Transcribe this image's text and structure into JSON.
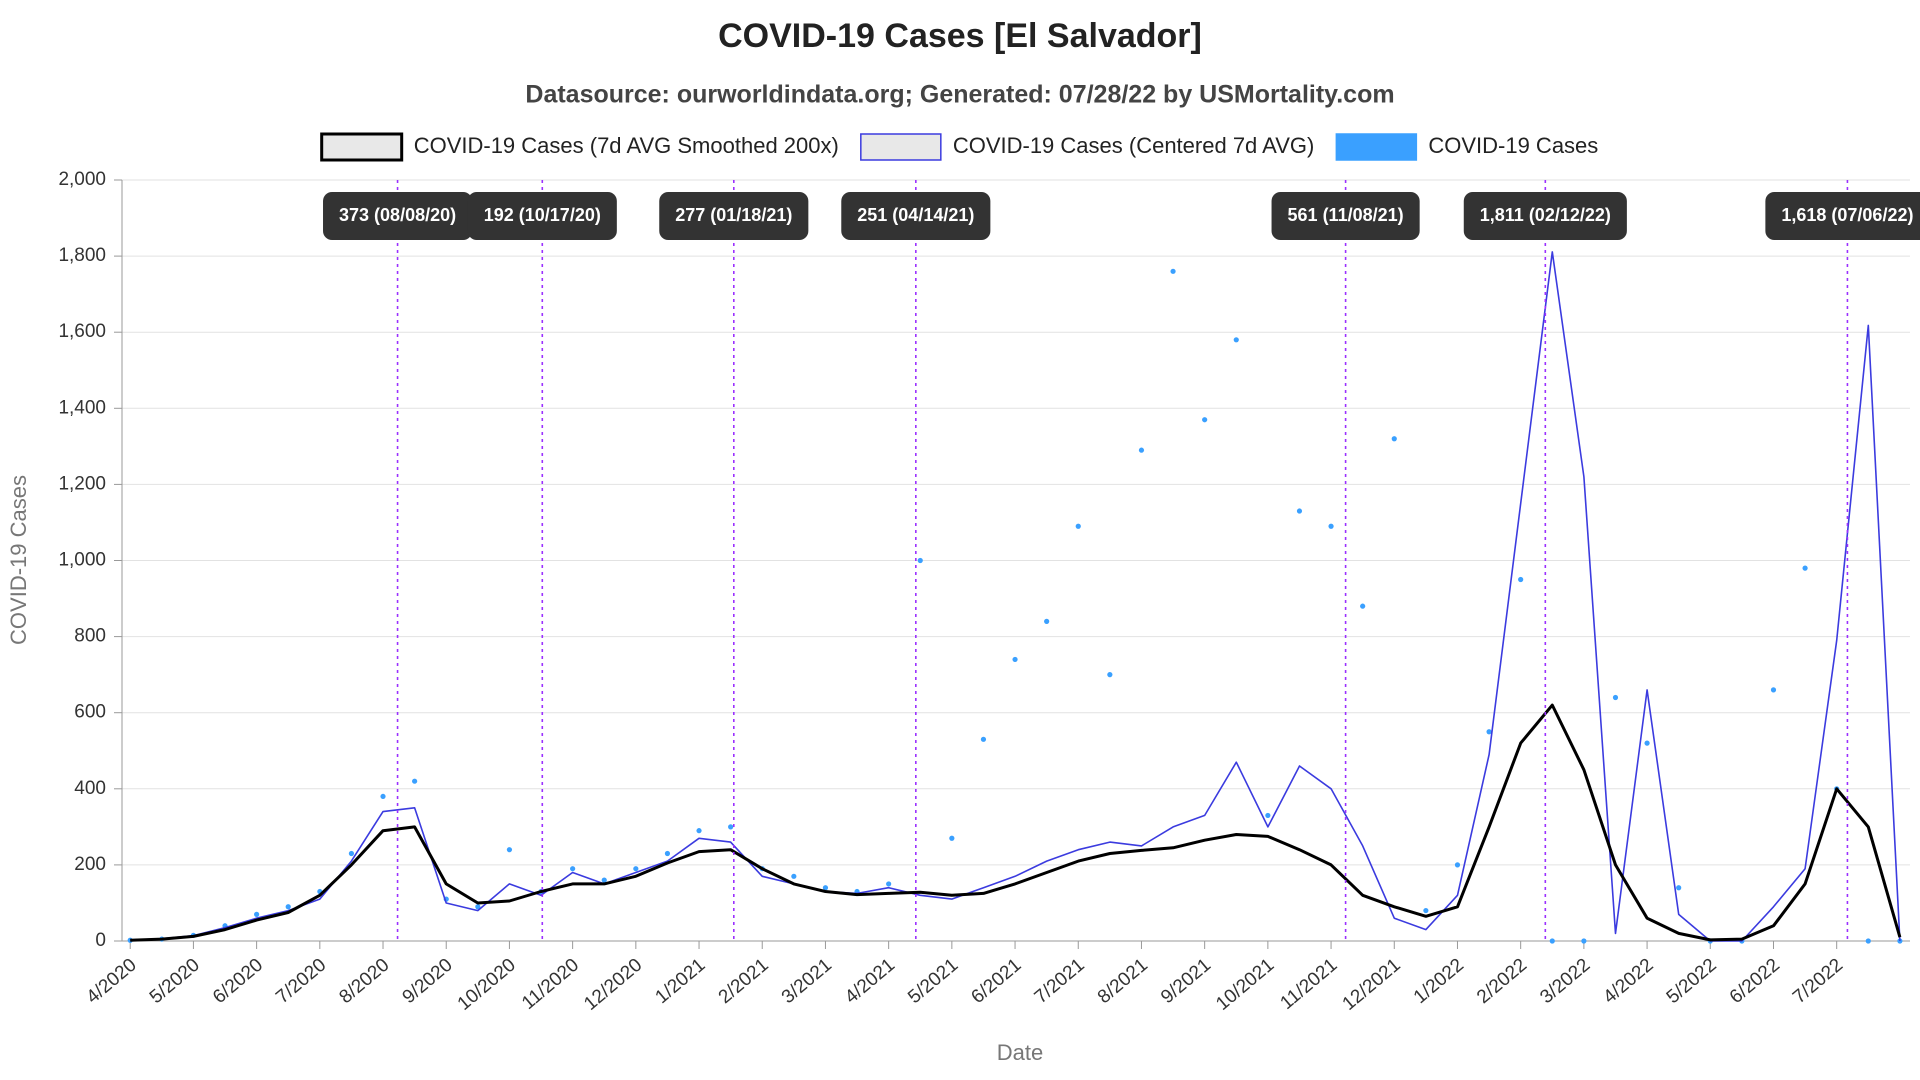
{
  "chart_data": {
    "type": "line",
    "title": "COVID-19 Cases [El Salvador]",
    "subtitle": "Datasource: ourworldindata.org; Generated: 07/28/22 by USMortality.com",
    "x_label": "Date",
    "y_label": "COVID-19 Cases",
    "xlim": [
      -0.13,
      28.16
    ],
    "xticks": [
      {
        "value": 0,
        "label": "4/2020"
      },
      {
        "value": 1,
        "label": "5/2020"
      },
      {
        "value": 2,
        "label": "6/2020"
      },
      {
        "value": 3,
        "label": "7/2020"
      },
      {
        "value": 4,
        "label": "8/2020"
      },
      {
        "value": 5,
        "label": "9/2020"
      },
      {
        "value": 6,
        "label": "10/2020"
      },
      {
        "value": 7,
        "label": "11/2020"
      },
      {
        "value": 8,
        "label": "12/2020"
      },
      {
        "value": 9,
        "label": "1/2021"
      },
      {
        "value": 10,
        "label": "2/2021"
      },
      {
        "value": 11,
        "label": "3/2021"
      },
      {
        "value": 12,
        "label": "4/2021"
      },
      {
        "value": 13,
        "label": "5/2021"
      },
      {
        "value": 14,
        "label": "6/2021"
      },
      {
        "value": 15,
        "label": "7/2021"
      },
      {
        "value": 16,
        "label": "8/2021"
      },
      {
        "value": 17,
        "label": "9/2021"
      },
      {
        "value": 18,
        "label": "10/2021"
      },
      {
        "value": 19,
        "label": "11/2021"
      },
      {
        "value": 20,
        "label": "12/2021"
      },
      {
        "value": 21,
        "label": "1/2022"
      },
      {
        "value": 22,
        "label": "2/2022"
      },
      {
        "value": 23,
        "label": "3/2022"
      },
      {
        "value": 24,
        "label": "4/2022"
      },
      {
        "value": 25,
        "label": "5/2022"
      },
      {
        "value": 26,
        "label": "6/2022"
      },
      {
        "value": 27,
        "label": "7/2022"
      }
    ],
    "ylim": [
      0,
      2000
    ],
    "yticks": [
      0,
      200,
      400,
      600,
      800,
      {
        "value": 1000,
        "label": "1,000"
      },
      {
        "value": 1200,
        "label": "1,200"
      },
      {
        "value": 1400,
        "label": "1,400"
      },
      {
        "value": 1600,
        "label": "1,600"
      },
      {
        "value": 1800,
        "label": "1,800"
      },
      {
        "value": 2000,
        "label": "2,000"
      }
    ],
    "grid": true,
    "x": [
      0,
      0.5,
      1,
      1.5,
      2,
      2.5,
      3,
      3.5,
      4,
      4.5,
      5,
      5.5,
      6,
      6.5,
      7,
      7.5,
      8,
      8.5,
      9,
      9.5,
      10,
      10.5,
      11,
      11.5,
      12,
      12.5,
      13,
      13.5,
      14,
      14.5,
      15,
      15.5,
      16,
      16.5,
      17,
      17.5,
      18,
      18.5,
      19,
      19.5,
      20,
      20.5,
      21,
      21.5,
      22,
      22.5,
      23,
      23.5,
      24,
      24.5,
      25,
      25.5,
      26,
      26.5,
      27,
      27.5,
      28
    ],
    "series": [
      {
        "name": "COVID-19 Cases (7d AVG Smoothed 200x)",
        "color": "#000000",
        "kind": "line",
        "values": [
          2,
          5,
          12,
          30,
          55,
          75,
          120,
          200,
          290,
          300,
          150,
          100,
          105,
          130,
          150,
          150,
          170,
          205,
          235,
          240,
          190,
          150,
          130,
          122,
          125,
          128,
          120,
          125,
          150,
          180,
          210,
          230,
          238,
          245,
          265,
          280,
          275,
          240,
          200,
          120,
          90,
          65,
          90,
          300,
          520,
          620,
          450,
          200,
          60,
          20,
          3,
          5,
          40,
          150,
          400,
          300,
          10
        ]
      },
      {
        "name": "COVID-19 Cases (Centered 7d AVG)",
        "color": "#3b3bdf",
        "kind": "line",
        "values": [
          3,
          6,
          14,
          35,
          60,
          80,
          110,
          210,
          340,
          350,
          100,
          80,
          150,
          120,
          180,
          150,
          180,
          210,
          270,
          260,
          170,
          150,
          130,
          125,
          140,
          120,
          110,
          140,
          170,
          210,
          240,
          260,
          250,
          300,
          330,
          470,
          300,
          460,
          400,
          250,
          60,
          30,
          120,
          490,
          1150,
          1811,
          1220,
          20,
          660,
          70,
          0,
          0,
          90,
          190,
          790,
          1618,
          0
        ]
      },
      {
        "name": "COVID-19 Cases",
        "color": "#3aa0ff",
        "kind": "dots",
        "values": [
          2,
          5,
          15,
          40,
          70,
          90,
          130,
          230,
          380,
          420,
          110,
          90,
          240,
          130,
          190,
          160,
          190,
          230,
          290,
          300,
          190,
          170,
          140,
          130,
          150,
          1000,
          270,
          530,
          740,
          840,
          1090,
          700,
          1290,
          1760,
          1370,
          1580,
          330,
          1130,
          1090,
          880,
          1320,
          80,
          200,
          550,
          950,
          0,
          0,
          640,
          520,
          140,
          0,
          0,
          660,
          980,
          400,
          0,
          0
        ]
      }
    ],
    "annotations": [
      {
        "x": 4.23,
        "label": "373 (08/08/20)"
      },
      {
        "x": 6.52,
        "label": "192 (10/17/20)"
      },
      {
        "x": 9.55,
        "label": "277 (01/18/21)"
      },
      {
        "x": 12.43,
        "label": "251 (04/14/21)"
      },
      {
        "x": 19.23,
        "label": "561 (11/08/21)"
      },
      {
        "x": 22.39,
        "label": "1,811 (02/12/22)"
      },
      {
        "x": 27.17,
        "label": "1,618 (07/06/22)"
      }
    ],
    "annotation_color": "#9b30ff"
  }
}
